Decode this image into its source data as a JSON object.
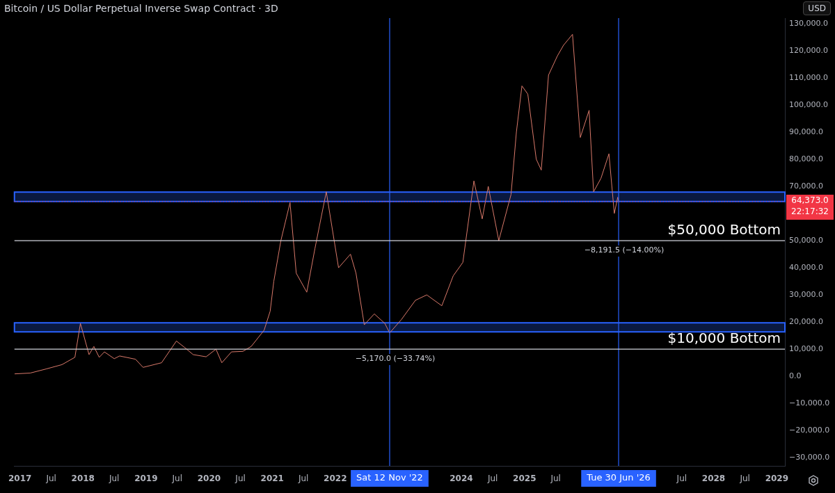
{
  "chart_data": {
    "type": "line",
    "title": "Bitcoin / US Dollar Perpetual Inverse Swap Contract · 3D",
    "x": [
      "2016-12-01",
      "2017-03-01",
      "2017-06-01",
      "2017-09-01",
      "2017-11-15",
      "2017-12-17",
      "2018-02-05",
      "2018-03-05",
      "2018-04-05",
      "2018-05-05",
      "2018-07-01",
      "2018-08-01",
      "2018-11-01",
      "2018-12-15",
      "2019-04-01",
      "2019-06-26",
      "2019-08-15",
      "2019-10-01",
      "2019-12-15",
      "2020-02-10",
      "2020-03-15",
      "2020-05-10",
      "2020-07-15",
      "2020-09-01",
      "2020-11-15",
      "2020-12-20",
      "2021-01-10",
      "2021-02-20",
      "2021-04-14",
      "2021-05-20",
      "2021-07-20",
      "2021-09-05",
      "2021-11-10",
      "2022-01-20",
      "2022-03-30",
      "2022-05-01",
      "2022-06-18",
      "2022-08-15",
      "2022-10-15",
      "2022-11-12",
      "2023-01-20",
      "2023-04-10",
      "2023-06-15",
      "2023-09-10",
      "2023-11-15",
      "2024-01-10",
      "2024-03-14",
      "2024-05-01",
      "2024-06-05",
      "2024-08-05",
      "2024-10-15",
      "2024-11-15",
      "2024-12-17",
      "2025-01-20",
      "2025-03-10",
      "2025-04-08",
      "2025-05-20",
      "2025-07-10",
      "2025-08-15",
      "2025-10-06",
      "2025-11-20",
      "2026-01-10",
      "2026-02-05",
      "2026-03-20",
      "2026-05-05",
      "2026-06-05",
      "2026-06-25",
      "2026-06-30"
    ],
    "series": [
      {
        "color": "#d9796a",
        "values": [
          900,
          1200,
          2700,
          4300,
          7000,
          19500,
          8000,
          11000,
          7000,
          9000,
          6500,
          7500,
          6300,
          3300,
          5000,
          13000,
          10500,
          8000,
          7200,
          10000,
          5000,
          9000,
          9200,
          11000,
          17000,
          24000,
          35000,
          50000,
          64000,
          38000,
          31000,
          47000,
          68000,
          40000,
          45000,
          38000,
          19000,
          23000,
          19500,
          16000,
          21000,
          28000,
          30000,
          26000,
          37000,
          42000,
          72000,
          58000,
          70000,
          50000,
          67000,
          90000,
          107000,
          104000,
          80000,
          76000,
          111000,
          118000,
          122000,
          126000,
          88000,
          98000,
          68000,
          73000,
          82000,
          60000,
          66000,
          64373
        ]
      }
    ],
    "xlim": [
      "2016-11-30",
      "2029-02-17"
    ],
    "xticks": [
      {
        "value": "2017-01-01",
        "label": "2017"
      },
      {
        "value": "2017-07-01",
        "label": "Jul"
      },
      {
        "value": "2018-01-01",
        "label": "2018"
      },
      {
        "value": "2018-07-01",
        "label": "Jul"
      },
      {
        "value": "2019-01-01",
        "label": "2019"
      },
      {
        "value": "2019-07-01",
        "label": "Jul"
      },
      {
        "value": "2020-01-01",
        "label": "2020"
      },
      {
        "value": "2020-07-01",
        "label": "Jul"
      },
      {
        "value": "2021-01-01",
        "label": "2021"
      },
      {
        "value": "2021-07-01",
        "label": "Jul"
      },
      {
        "value": "2022-01-01",
        "label": "2022"
      },
      {
        "value": "2024-01-01",
        "label": "2024"
      },
      {
        "value": "2024-07-01",
        "label": "Jul"
      },
      {
        "value": "2025-01-01",
        "label": "2025"
      },
      {
        "value": "2025-07-01",
        "label": "Jul"
      },
      {
        "value": "2027-07-01",
        "label": "Jul"
      },
      {
        "value": "2028-01-01",
        "label": "2028"
      },
      {
        "value": "2028-07-01",
        "label": "Jul"
      },
      {
        "value": "2029-01-01",
        "label": "2029"
      }
    ],
    "ylim": [
      -33000,
      132000
    ],
    "yticks": [
      {
        "value": -30000,
        "label": "−30,000.0"
      },
      {
        "value": -20000,
        "label": "−20,000.0"
      },
      {
        "value": -10000,
        "label": "−10,000.0"
      },
      {
        "value": 0,
        "label": "0.0"
      },
      {
        "value": 10000,
        "label": "10,000.0"
      },
      {
        "value": 20000,
        "label": "20,000.0"
      },
      {
        "value": 30000,
        "label": "30,000.0"
      },
      {
        "value": 40000,
        "label": "40,000.0"
      },
      {
        "value": 50000,
        "label": "50,000.0"
      },
      {
        "value": 70000,
        "label": "70,000.0"
      },
      {
        "value": 80000,
        "label": "80,000.0"
      },
      {
        "value": 90000,
        "label": "90,000.0"
      },
      {
        "value": 100000,
        "label": "100,000.0"
      },
      {
        "value": 110000,
        "label": "110,000.0"
      },
      {
        "value": 120000,
        "label": "120,000.0"
      },
      {
        "value": 130000,
        "label": "130,000.0"
      }
    ],
    "ref_lines": [
      {
        "axis": "x",
        "value": "2022-11-12",
        "label": "Sat 12 Nov '22",
        "color": "#2962ff"
      },
      {
        "axis": "x",
        "value": "2026-06-30",
        "label": "Tue 30 Jun '26",
        "color": "#2962ff"
      },
      {
        "axis": "y",
        "value": 50000,
        "label": "$50,000 Bottom",
        "color": "#d1d4dc"
      },
      {
        "axis": "y",
        "value": 10000,
        "label": "$10,000 Bottom",
        "color": "#d1d4dc"
      },
      {
        "axis": "y",
        "value": 64373,
        "label": "64,373.0 22:17:32",
        "color": "#f23645",
        "line_style": "dotted"
      }
    ],
    "bands": [
      {
        "axis": "y",
        "from": 16400,
        "to": 19700,
        "color": "#2962ff"
      },
      {
        "axis": "y",
        "from": 64400,
        "to": 67900,
        "color": "#2962ff"
      }
    ],
    "annotations": [
      {
        "text": "−5,170.0 (−33.74%)",
        "x": "2022-11-12",
        "y": 10330
      },
      {
        "text": "−8,191.5 (−14.00%)",
        "x": "2026-06-30",
        "y": 50300
      },
      "USD"
    ],
    "grid": false,
    "legend": false,
    "marker": "none",
    "line_style": "solid"
  }
}
